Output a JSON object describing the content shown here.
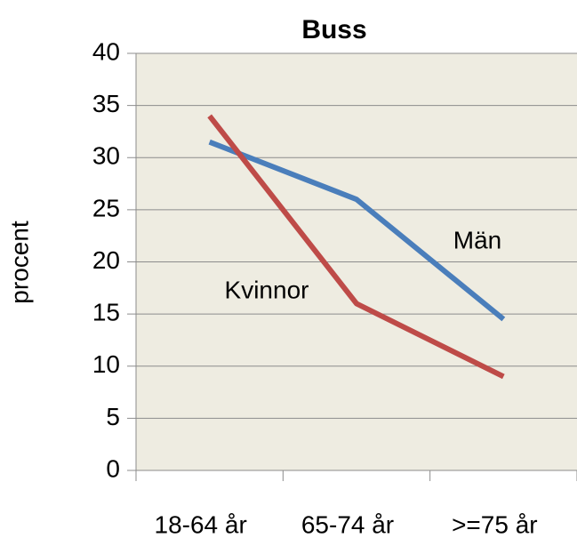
{
  "chart_data": {
    "type": "line",
    "title": "Buss",
    "y_label": "procent",
    "categories": [
      "18-64 år",
      "65-74 år",
      ">=75 år"
    ],
    "series": [
      {
        "name": "Män",
        "color": "#4a7ebb",
        "values": [
          31.5,
          26,
          14.5
        ]
      },
      {
        "name": "Kvinnor",
        "color": "#be4b48",
        "values": [
          34,
          16,
          9
        ]
      }
    ],
    "ylim": [
      0,
      40
    ],
    "yticks": [
      0,
      5,
      10,
      15,
      20,
      25,
      30,
      35,
      40
    ],
    "grid": true
  }
}
